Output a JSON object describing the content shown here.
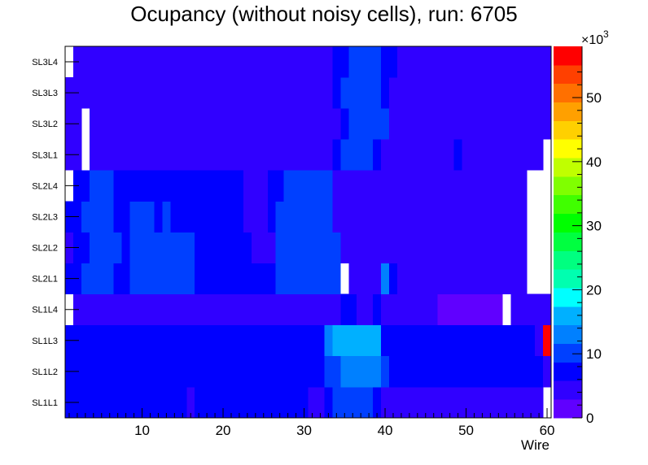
{
  "chart_data": {
    "type": "heatmap",
    "title": "Ocupancy (without noisy cells), run: 6705",
    "xlabel": "Wire",
    "ylabel": "",
    "x_range": [
      0.5,
      60.5
    ],
    "x_ticks": [
      10,
      20,
      30,
      40,
      50,
      60
    ],
    "y_categories": [
      "SL1L1",
      "SL1L2",
      "SL1L3",
      "SL1L4",
      "SL2L1",
      "SL2L2",
      "SL2L3",
      "SL2L4",
      "SL3L1",
      "SL3L2",
      "SL3L3",
      "SL3L4"
    ],
    "z_range": [
      0,
      58
    ],
    "z_ticks": [
      0,
      10,
      20,
      30,
      40,
      50
    ],
    "z_multiplier": "×10",
    "z_exponent": "3",
    "palette": [
      "#6000ff",
      "#3000ff",
      "#0000ff",
      "#0040ff",
      "#0080ff",
      "#00b0ff",
      "#00ffff",
      "#00ffb0",
      "#00ff80",
      "#00ff40",
      "#00ff00",
      "#40ff00",
      "#80ff00",
      "#c0ff00",
      "#ffff00",
      "#ffd000",
      "#ffa000",
      "#ff7000",
      "#ff4000",
      "#ff0000"
    ],
    "rows": [
      {
        "layer": "SL1L1",
        "segments": [
          [
            1,
            15,
            6
          ],
          [
            16,
            16,
            4
          ],
          [
            17,
            30,
            6
          ],
          [
            31,
            32,
            4
          ],
          [
            33,
            33,
            6
          ],
          [
            34,
            38,
            11
          ],
          [
            39,
            39,
            8
          ],
          [
            40,
            59,
            4
          ],
          [
            60,
            60,
            null
          ]
        ]
      },
      {
        "layer": "SL1L2",
        "segments": [
          [
            1,
            32,
            7
          ],
          [
            33,
            33,
            9
          ],
          [
            34,
            34,
            11
          ],
          [
            35,
            39,
            14
          ],
          [
            40,
            40,
            10
          ],
          [
            41,
            59,
            8
          ],
          [
            60,
            60,
            4
          ]
        ]
      },
      {
        "layer": "SL1L3",
        "segments": [
          [
            1,
            32,
            7
          ],
          [
            33,
            33,
            12
          ],
          [
            34,
            39,
            15
          ],
          [
            40,
            50,
            7
          ],
          [
            51,
            52,
            6
          ],
          [
            53,
            58,
            7
          ],
          [
            59,
            59,
            4
          ],
          [
            60,
            60,
            58
          ]
        ]
      },
      {
        "layer": "SL1L4",
        "segments": [
          [
            1,
            1,
            null
          ],
          [
            2,
            34,
            4
          ],
          [
            35,
            36,
            7
          ],
          [
            37,
            38,
            4
          ],
          [
            39,
            39,
            6
          ],
          [
            40,
            44,
            4
          ],
          [
            45,
            45,
            3
          ],
          [
            46,
            46,
            4
          ],
          [
            47,
            54,
            2
          ],
          [
            55,
            55,
            null
          ],
          [
            56,
            57,
            3
          ],
          [
            58,
            60,
            4
          ]
        ]
      },
      {
        "layer": "SL2L1",
        "segments": [
          [
            1,
            2,
            6
          ],
          [
            3,
            6,
            10
          ],
          [
            7,
            8,
            6
          ],
          [
            9,
            16,
            10
          ],
          [
            17,
            26,
            6
          ],
          [
            27,
            34,
            10
          ],
          [
            35,
            35,
            null
          ],
          [
            36,
            39,
            4
          ],
          [
            40,
            40,
            14
          ],
          [
            41,
            41,
            8
          ],
          [
            42,
            57,
            4
          ],
          [
            58,
            60,
            null
          ]
        ]
      },
      {
        "layer": "SL2L2",
        "segments": [
          [
            1,
            1,
            4
          ],
          [
            2,
            3,
            6
          ],
          [
            4,
            7,
            10
          ],
          [
            8,
            8,
            6
          ],
          [
            9,
            16,
            10
          ],
          [
            17,
            23,
            6
          ],
          [
            24,
            24,
            4
          ],
          [
            25,
            26,
            5
          ],
          [
            27,
            34,
            10
          ],
          [
            35,
            57,
            4
          ],
          [
            58,
            60,
            null
          ]
        ]
      },
      {
        "layer": "SL2L3",
        "segments": [
          [
            1,
            2,
            6
          ],
          [
            3,
            6,
            10
          ],
          [
            7,
            8,
            6
          ],
          [
            9,
            11,
            10
          ],
          [
            12,
            12,
            6
          ],
          [
            13,
            13,
            10
          ],
          [
            14,
            22,
            6
          ],
          [
            23,
            25,
            4
          ],
          [
            26,
            26,
            6
          ],
          [
            27,
            33,
            10
          ],
          [
            34,
            45,
            4
          ],
          [
            46,
            46,
            3
          ],
          [
            47,
            57,
            4
          ],
          [
            58,
            60,
            null
          ]
        ]
      },
      {
        "layer": "SL2L4",
        "segments": [
          [
            1,
            1,
            null
          ],
          [
            2,
            3,
            6
          ],
          [
            4,
            6,
            10
          ],
          [
            7,
            22,
            6
          ],
          [
            23,
            25,
            4
          ],
          [
            26,
            27,
            6
          ],
          [
            28,
            33,
            10
          ],
          [
            34,
            45,
            4
          ],
          [
            46,
            48,
            3
          ],
          [
            49,
            50,
            4
          ],
          [
            51,
            51,
            3
          ],
          [
            52,
            57,
            4
          ],
          [
            58,
            60,
            null
          ]
        ]
      },
      {
        "layer": "SL3L1",
        "segments": [
          [
            1,
            2,
            4
          ],
          [
            3,
            3,
            null
          ],
          [
            4,
            33,
            4
          ],
          [
            34,
            34,
            8
          ],
          [
            35,
            38,
            11
          ],
          [
            39,
            39,
            8
          ],
          [
            40,
            48,
            4
          ],
          [
            49,
            49,
            6
          ],
          [
            50,
            58,
            4
          ],
          [
            59,
            59,
            3
          ],
          [
            60,
            60,
            null
          ]
        ]
      },
      {
        "layer": "SL3L2",
        "segments": [
          [
            1,
            2,
            4
          ],
          [
            3,
            3,
            null
          ],
          [
            4,
            34,
            4
          ],
          [
            35,
            35,
            6
          ],
          [
            36,
            40,
            11
          ],
          [
            41,
            58,
            4
          ],
          [
            59,
            60,
            3
          ]
        ]
      },
      {
        "layer": "SL3L3",
        "segments": [
          [
            1,
            2,
            4
          ],
          [
            3,
            33,
            4
          ],
          [
            34,
            34,
            8
          ],
          [
            35,
            39,
            11
          ],
          [
            40,
            40,
            8
          ],
          [
            41,
            44,
            4
          ],
          [
            45,
            45,
            3
          ],
          [
            46,
            57,
            4
          ],
          [
            58,
            60,
            3
          ]
        ]
      },
      {
        "layer": "SL3L4",
        "segments": [
          [
            1,
            1,
            null
          ],
          [
            2,
            33,
            4
          ],
          [
            34,
            34,
            6
          ],
          [
            35,
            35,
            8
          ],
          [
            36,
            39,
            11
          ],
          [
            40,
            40,
            8
          ],
          [
            41,
            41,
            6
          ],
          [
            42,
            58,
            4
          ],
          [
            59,
            60,
            3
          ]
        ]
      }
    ]
  }
}
